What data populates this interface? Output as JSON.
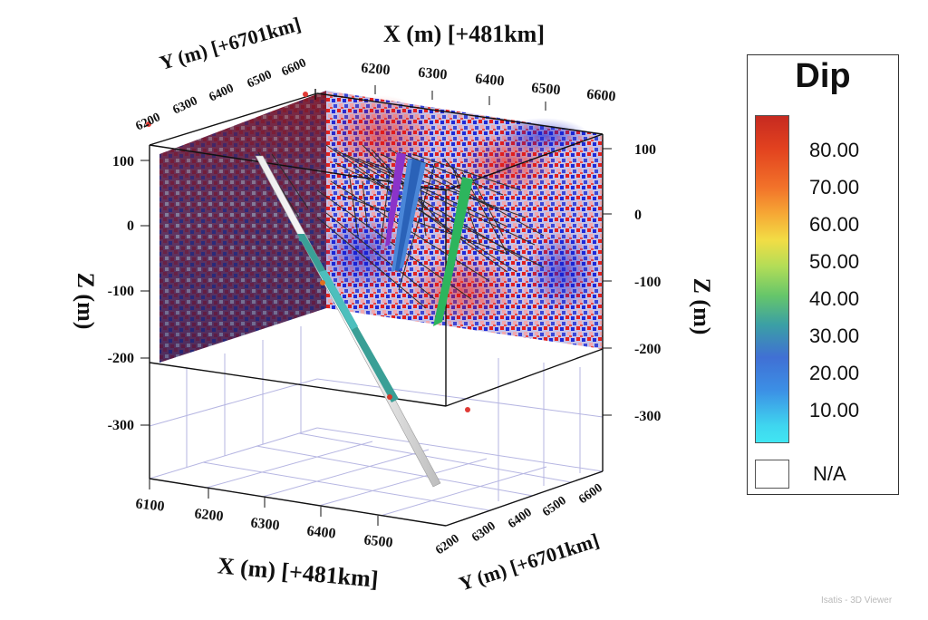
{
  "scene": {
    "x_title_top": "X (m) [+481km]",
    "y_title_top": "Y (m) [+6701km]",
    "x_title_bottom": "X (m) [+481km]",
    "y_title_bottom": "Y (m) [+6701km]",
    "z_title_left": "Z (m)",
    "z_title_right": "Z (m)",
    "x_ticks_top": [
      "6200",
      "6300",
      "6400",
      "6500",
      "6600"
    ],
    "y_ticks_top": [
      "6200",
      "6300",
      "6400",
      "6500",
      "6600"
    ],
    "x_ticks_bottom": [
      "6100",
      "6200",
      "6300",
      "6400",
      "6500"
    ],
    "y_ticks_bottom": [
      "6200",
      "6300",
      "6400",
      "6500",
      "6600"
    ],
    "z_ticks_left": [
      "100",
      "0",
      "-100",
      "-200",
      "-300"
    ],
    "z_ticks_right": [
      "100",
      "0",
      "-100",
      "-200",
      "-300"
    ]
  },
  "legend": {
    "title": "Dip",
    "values": [
      "80.00",
      "70.00",
      "60.00",
      "50.00",
      "40.00",
      "30.00",
      "20.00",
      "10.00"
    ],
    "na_label": "N/A"
  },
  "watermark": "Isatis - 3D Viewer"
}
